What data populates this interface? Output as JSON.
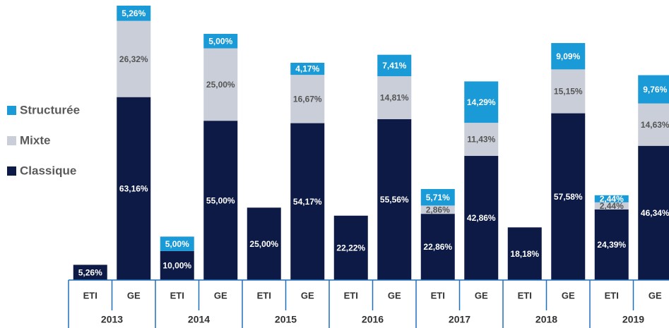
{
  "chart_data": {
    "type": "stacked-bar",
    "categories": [
      "ETI",
      "GE",
      "ETI",
      "GE",
      "ETI",
      "GE",
      "ETI",
      "GE",
      "ETI",
      "GE",
      "ETI",
      "GE",
      "ETI",
      "GE"
    ],
    "groups": [
      "2013",
      "2014",
      "2015",
      "2016",
      "2017",
      "2018",
      "2019"
    ],
    "series": [
      {
        "name": "Classique",
        "color": "#0d1a45",
        "values": [
          5.26,
          63.16,
          10.0,
          55.0,
          25.0,
          54.17,
          22.22,
          55.56,
          22.86,
          42.86,
          18.18,
          57.58,
          24.39,
          46.34
        ],
        "value_labels": [
          "5,26%",
          "63,16%",
          "10,00%",
          "55,00%",
          "25,00%",
          "54,17%",
          "22,22%",
          "55,56%",
          "22,86%",
          "42,86%",
          "18,18%",
          "57,58%",
          "24,39%",
          "46,34%"
        ]
      },
      {
        "name": "Mixte",
        "color": "#c9ced8",
        "values": [
          null,
          26.32,
          null,
          25.0,
          null,
          16.67,
          null,
          14.81,
          2.86,
          11.43,
          null,
          15.15,
          2.44,
          14.63
        ],
        "value_labels": [
          null,
          "26,32%",
          null,
          "25,00%",
          null,
          "16,67%",
          null,
          "14,81%",
          "2,86%",
          "11,43%",
          null,
          "15,15%",
          "2,44%",
          "14,63%"
        ]
      },
      {
        "name": "Structurée",
        "color": "#1a9ad6",
        "values": [
          null,
          5.26,
          5.0,
          5.0,
          null,
          4.17,
          null,
          7.41,
          5.71,
          14.29,
          null,
          9.09,
          2.44,
          9.76
        ],
        "value_labels": [
          null,
          "5,26%",
          "5,00%",
          "5,00%",
          null,
          "4,17%",
          null,
          "7,41%",
          "5,71%",
          "14,29%",
          null,
          "9,09%",
          "2,44%",
          "9,76%"
        ]
      }
    ],
    "legend": "left"
  }
}
